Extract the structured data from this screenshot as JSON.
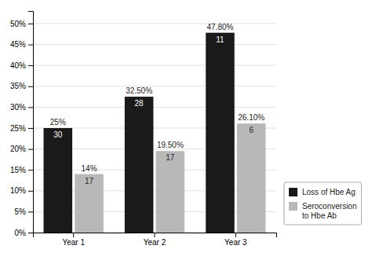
{
  "chart_data": {
    "type": "bar",
    "categories": [
      "Year 1",
      "Year 2",
      "Year 3"
    ],
    "series": [
      {
        "name": "Loss of Hbe Ag",
        "color": "#1a1a1a",
        "values": [
          25,
          32.5,
          47.8
        ],
        "value_labels": [
          "25%",
          "32.50%",
          "47.80%"
        ],
        "counts": [
          30,
          28,
          11
        ]
      },
      {
        "name": "Seroconversion\nto Hbe Ab",
        "color": "#b8b8b8",
        "values": [
          14,
          19.5,
          26.1
        ],
        "value_labels": [
          "14%",
          "19.50%",
          "26.10%"
        ],
        "counts": [
          17,
          17,
          6
        ]
      }
    ],
    "ylim": [
      0,
      53
    ],
    "yticks": [
      {
        "value": 0,
        "label": "0%"
      },
      {
        "value": 5,
        "label": "5%"
      },
      {
        "value": 10,
        "label": "10%"
      },
      {
        "value": 15,
        "label": "15%"
      },
      {
        "value": 20,
        "label": "20%"
      },
      {
        "value": 25,
        "label": "25%"
      },
      {
        "value": 30,
        "label": "30%"
      },
      {
        "value": 35,
        "label": "35%"
      },
      {
        "value": 40,
        "label": "40%"
      },
      {
        "value": 45,
        "label": "45%"
      },
      {
        "value": 50,
        "label": "50%"
      }
    ],
    "grid": true,
    "legend": "lower right",
    "data_labels": true
  }
}
